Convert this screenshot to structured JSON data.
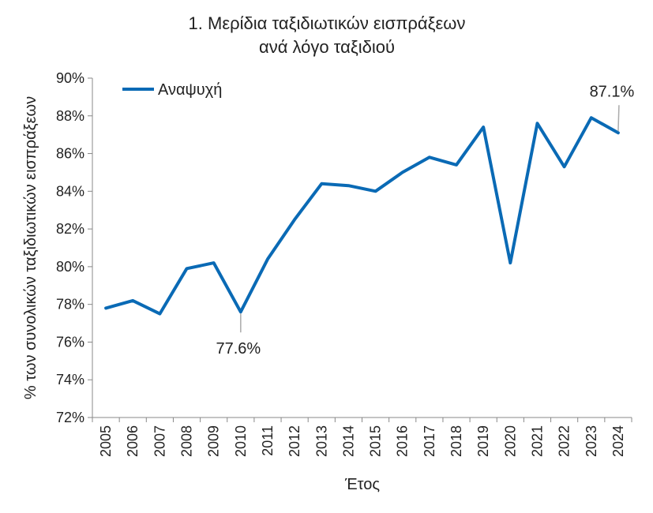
{
  "chart_data": {
    "type": "line",
    "title_line1": "1. Μερίδια ταξιδιωτικών εισπράξεων",
    "title_line2": "ανά λόγο ταξιδιού",
    "xlabel": "Έτος",
    "ylabel": "% των συνολικών ταξιδιωτικών εισπράξεων",
    "categories": [
      "2005",
      "2006",
      "2007",
      "2008",
      "2009",
      "2010",
      "2011",
      "2012",
      "2013",
      "2014",
      "2015",
      "2016",
      "2017",
      "2018",
      "2019",
      "2020",
      "2021",
      "2022",
      "2023",
      "2024"
    ],
    "series": [
      {
        "name": "Αναψυχή",
        "color": "#0a6ab5",
        "values": [
          77.8,
          78.2,
          77.5,
          79.9,
          80.2,
          77.6,
          80.4,
          82.5,
          84.4,
          84.3,
          84.0,
          85.0,
          85.8,
          85.4,
          87.4,
          80.2,
          87.6,
          85.3,
          87.9,
          87.1
        ]
      }
    ],
    "yticks": [
      "72%",
      "74%",
      "76%",
      "78%",
      "80%",
      "82%",
      "84%",
      "86%",
      "88%",
      "90%"
    ],
    "ylim": [
      72,
      90
    ],
    "ystep": 2,
    "grid": false,
    "legend_position": "top-left",
    "annotations": [
      {
        "category": "2010",
        "text": "77.6%",
        "placement": "below"
      },
      {
        "category": "2024",
        "text": "87.1%",
        "placement": "above"
      }
    ]
  }
}
